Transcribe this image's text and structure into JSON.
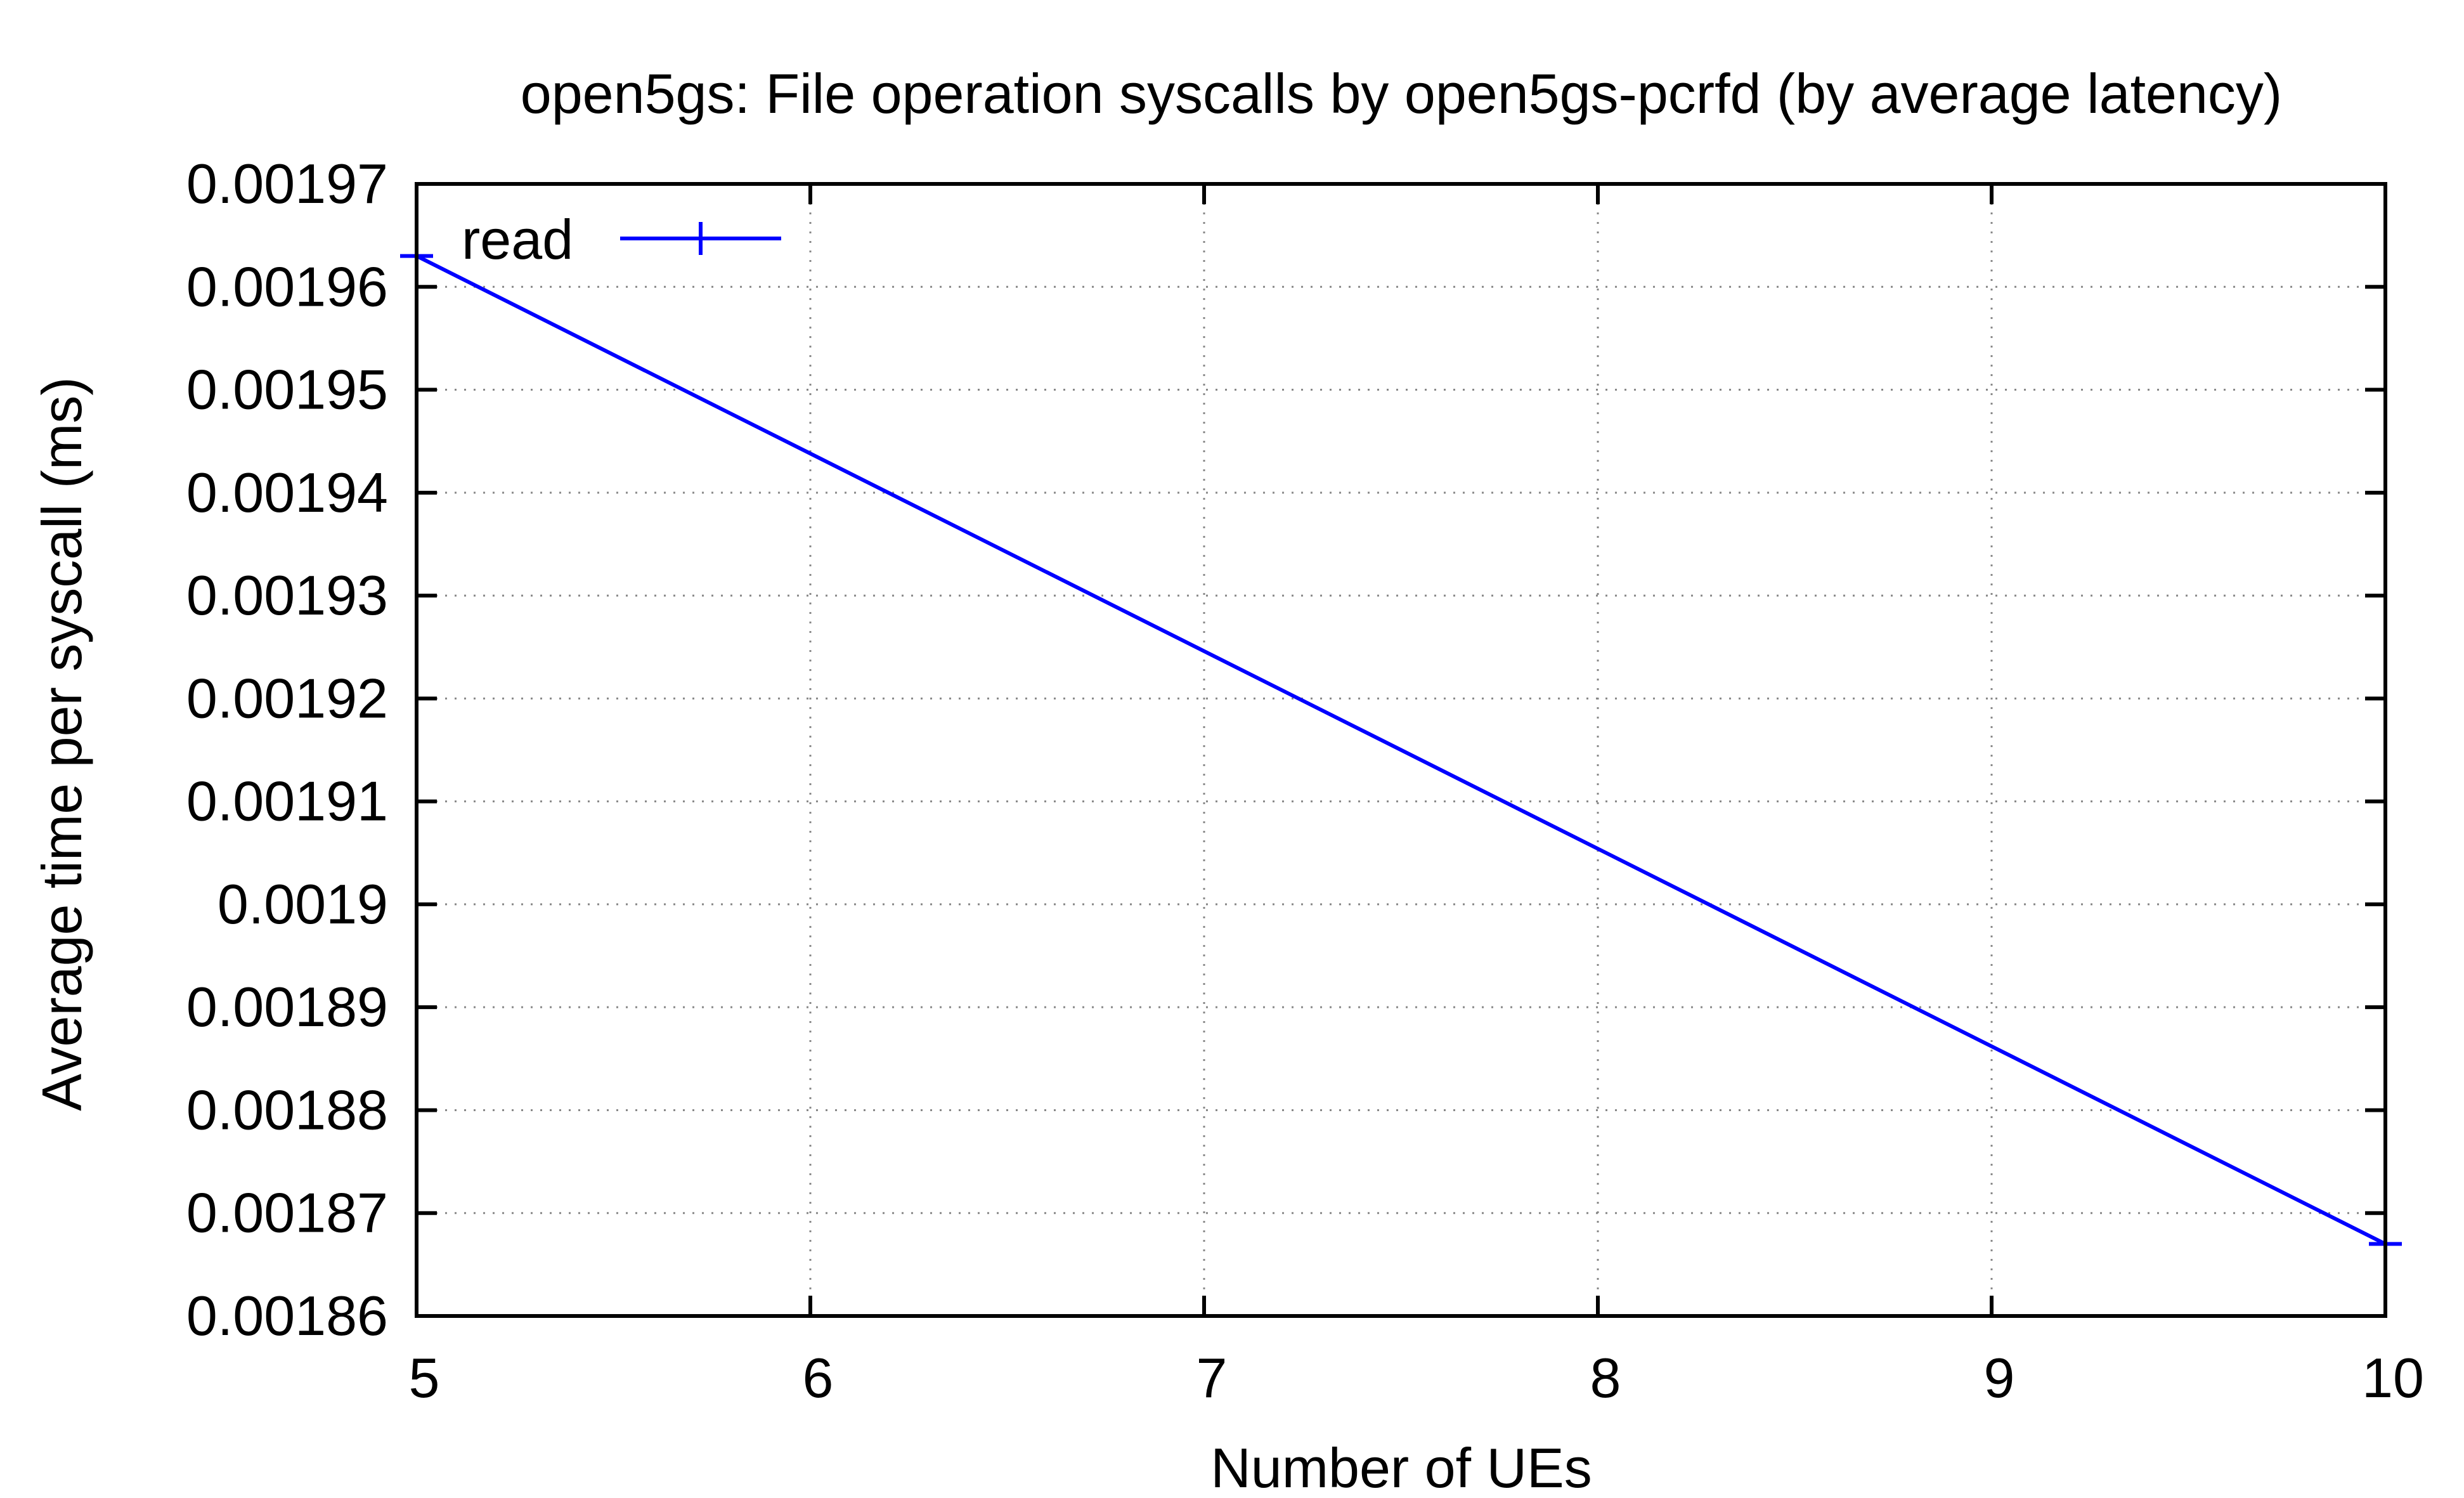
{
  "chart_data": {
    "type": "line",
    "title": "open5gs: File operation syscalls by open5gs-pcrfd (by average latency)",
    "xlabel": "Number of UEs",
    "ylabel": "Average time per syscall (ms)",
    "xlim": [
      5,
      10
    ],
    "ylim": [
      0.00186,
      0.00197
    ],
    "x_ticks": [
      5,
      6,
      7,
      8,
      9,
      10
    ],
    "x_tick_labels": [
      "5",
      "6",
      "7",
      "8",
      "9",
      "10"
    ],
    "y_ticks": [
      0.00186,
      0.00187,
      0.00188,
      0.00189,
      0.0019,
      0.00191,
      0.00192,
      0.00193,
      0.00194,
      0.00195,
      0.00196,
      0.00197
    ],
    "y_tick_labels": [
      "0.00186",
      "0.00187",
      "0.00188",
      "0.00189",
      "0.0019",
      "0.00191",
      "0.00192",
      "0.00193",
      "0.00194",
      "0.00195",
      "0.00196",
      "0.00197"
    ],
    "grid": true,
    "legend_position": "top-left",
    "series": [
      {
        "name": "read",
        "color": "#0000ff",
        "marker": "plus",
        "x": [
          5,
          10
        ],
        "y": [
          0.001963,
          0.001867
        ]
      }
    ]
  }
}
